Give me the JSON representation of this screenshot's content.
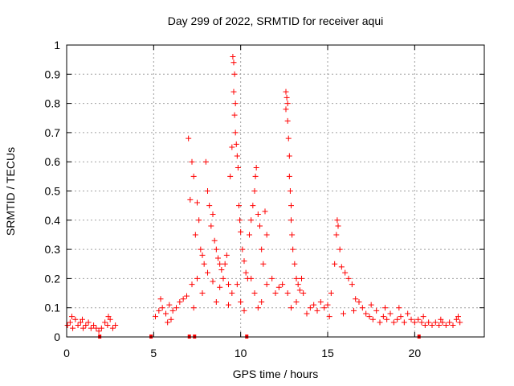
{
  "chart_data": {
    "type": "scatter",
    "title": "Day 299 of 2022, SRMTID for receiver aqui",
    "xlabel": "GPS time / hours",
    "ylabel": "SRMTID / TECUs",
    "xlim": [
      0,
      24
    ],
    "ylim": [
      0,
      1
    ],
    "x_ticks": [
      0,
      5,
      10,
      15,
      20
    ],
    "x_tick_labels": [
      "0",
      "5",
      "10",
      "15",
      "20"
    ],
    "y_ticks": [
      0,
      0.1,
      0.2,
      0.3,
      0.4,
      0.5,
      0.6,
      0.7,
      0.8,
      0.9,
      1
    ],
    "y_tick_labels": [
      "0",
      "0.1",
      "0.2",
      "0.3",
      "0.4",
      "0.5",
      "0.6",
      "0.7",
      "0.8",
      "0.9",
      "1"
    ],
    "grid": true,
    "marker": "+",
    "color": "#ff0000",
    "series": [
      {
        "name": "SRMTID",
        "points": [
          [
            0.05,
            0.04
          ],
          [
            0.2,
            0.05
          ],
          [
            0.35,
            0.03
          ],
          [
            0.5,
            0.06
          ],
          [
            0.65,
            0.04
          ],
          [
            0.8,
            0.05
          ],
          [
            0.95,
            0.03
          ],
          [
            1.1,
            0.04
          ],
          [
            1.25,
            0.05
          ],
          [
            1.4,
            0.03
          ],
          [
            1.55,
            0.04
          ],
          [
            1.7,
            0.03
          ],
          [
            1.85,
            0.02
          ],
          [
            2.0,
            0.03
          ],
          [
            2.2,
            0.05
          ],
          [
            2.35,
            0.04
          ],
          [
            2.5,
            0.06
          ],
          [
            2.65,
            0.03
          ],
          [
            2.8,
            0.04
          ],
          [
            0.3,
            0.07
          ],
          [
            0.9,
            0.06
          ],
          [
            2.4,
            0.07
          ],
          [
            5.1,
            0.07
          ],
          [
            5.3,
            0.09
          ],
          [
            5.5,
            0.1
          ],
          [
            5.7,
            0.08
          ],
          [
            5.9,
            0.11
          ],
          [
            6.1,
            0.09
          ],
          [
            6.3,
            0.1
          ],
          [
            6.5,
            0.12
          ],
          [
            6.7,
            0.13
          ],
          [
            6.9,
            0.14
          ],
          [
            5.4,
            0.13
          ],
          [
            6.0,
            0.06
          ],
          [
            5.8,
            0.05
          ],
          [
            7.0,
            0.68
          ],
          [
            7.2,
            0.6
          ],
          [
            7.3,
            0.55
          ],
          [
            7.1,
            0.47
          ],
          [
            7.5,
            0.46
          ],
          [
            7.6,
            0.4
          ],
          [
            7.4,
            0.35
          ],
          [
            7.7,
            0.3
          ],
          [
            7.8,
            0.28
          ],
          [
            7.9,
            0.25
          ],
          [
            8.0,
            0.6
          ],
          [
            8.1,
            0.5
          ],
          [
            8.2,
            0.45
          ],
          [
            8.3,
            0.38
          ],
          [
            8.4,
            0.42
          ],
          [
            8.5,
            0.33
          ],
          [
            8.6,
            0.3
          ],
          [
            8.7,
            0.27
          ],
          [
            8.8,
            0.25
          ],
          [
            8.9,
            0.23
          ],
          [
            7.2,
            0.18
          ],
          [
            7.5,
            0.2
          ],
          [
            7.8,
            0.15
          ],
          [
            8.1,
            0.22
          ],
          [
            8.4,
            0.19
          ],
          [
            8.6,
            0.12
          ],
          [
            8.8,
            0.17
          ],
          [
            7.3,
            0.1
          ],
          [
            9.0,
            0.2
          ],
          [
            9.1,
            0.25
          ],
          [
            9.2,
            0.28
          ],
          [
            9.3,
            0.18
          ],
          [
            9.4,
            0.55
          ],
          [
            9.5,
            0.65
          ],
          [
            9.55,
            0.96
          ],
          [
            9.6,
            0.94
          ],
          [
            9.65,
            0.9
          ],
          [
            9.6,
            0.84
          ],
          [
            9.7,
            0.8
          ],
          [
            9.65,
            0.76
          ],
          [
            9.7,
            0.7
          ],
          [
            9.75,
            0.66
          ],
          [
            9.8,
            0.62
          ],
          [
            9.85,
            0.58
          ],
          [
            9.9,
            0.45
          ],
          [
            9.95,
            0.4
          ],
          [
            10.0,
            0.36
          ],
          [
            10.1,
            0.3
          ],
          [
            10.2,
            0.26
          ],
          [
            10.3,
            0.22
          ],
          [
            10.4,
            0.2
          ],
          [
            9.5,
            0.15
          ],
          [
            9.8,
            0.18
          ],
          [
            10.0,
            0.12
          ],
          [
            10.2,
            0.09
          ],
          [
            9.3,
            0.11
          ],
          [
            10.5,
            0.35
          ],
          [
            10.6,
            0.4
          ],
          [
            10.7,
            0.45
          ],
          [
            10.8,
            0.5
          ],
          [
            10.85,
            0.55
          ],
          [
            10.9,
            0.58
          ],
          [
            11.0,
            0.42
          ],
          [
            11.1,
            0.38
          ],
          [
            11.2,
            0.3
          ],
          [
            11.3,
            0.25
          ],
          [
            11.4,
            0.43
          ],
          [
            11.5,
            0.35
          ],
          [
            10.6,
            0.2
          ],
          [
            10.8,
            0.15
          ],
          [
            11.0,
            0.1
          ],
          [
            11.2,
            0.12
          ],
          [
            11.5,
            0.18
          ],
          [
            11.8,
            0.2
          ],
          [
            12.0,
            0.15
          ],
          [
            12.2,
            0.17
          ],
          [
            12.4,
            0.18
          ],
          [
            12.6,
            0.84
          ],
          [
            12.65,
            0.82
          ],
          [
            12.7,
            0.8
          ],
          [
            12.6,
            0.78
          ],
          [
            12.7,
            0.74
          ],
          [
            12.75,
            0.68
          ],
          [
            12.8,
            0.62
          ],
          [
            12.8,
            0.55
          ],
          [
            12.85,
            0.5
          ],
          [
            12.9,
            0.45
          ],
          [
            12.9,
            0.4
          ],
          [
            12.95,
            0.35
          ],
          [
            13.0,
            0.3
          ],
          [
            13.1,
            0.25
          ],
          [
            13.2,
            0.2
          ],
          [
            13.3,
            0.18
          ],
          [
            13.4,
            0.16
          ],
          [
            13.5,
            0.2
          ],
          [
            13.6,
            0.15
          ],
          [
            12.7,
            0.15
          ],
          [
            12.9,
            0.1
          ],
          [
            13.2,
            0.12
          ],
          [
            13.8,
            0.08
          ],
          [
            14.0,
            0.1
          ],
          [
            14.2,
            0.11
          ],
          [
            14.4,
            0.09
          ],
          [
            14.6,
            0.12
          ],
          [
            14.8,
            0.1
          ],
          [
            15.0,
            0.11
          ],
          [
            15.2,
            0.15
          ],
          [
            15.4,
            0.25
          ],
          [
            15.5,
            0.35
          ],
          [
            15.55,
            0.4
          ],
          [
            15.6,
            0.38
          ],
          [
            15.7,
            0.3
          ],
          [
            15.8,
            0.24
          ],
          [
            16.0,
            0.22
          ],
          [
            16.2,
            0.2
          ],
          [
            16.4,
            0.18
          ],
          [
            16.6,
            0.13
          ],
          [
            16.8,
            0.12
          ],
          [
            17.0,
            0.1
          ],
          [
            15.1,
            0.07
          ],
          [
            15.9,
            0.08
          ],
          [
            16.5,
            0.09
          ],
          [
            17.2,
            0.08
          ],
          [
            17.4,
            0.07
          ],
          [
            17.6,
            0.06
          ],
          [
            17.8,
            0.09
          ],
          [
            18.0,
            0.05
          ],
          [
            18.2,
            0.07
          ],
          [
            18.4,
            0.06
          ],
          [
            18.6,
            0.08
          ],
          [
            18.8,
            0.05
          ],
          [
            19.0,
            0.06
          ],
          [
            19.2,
            0.07
          ],
          [
            19.4,
            0.05
          ],
          [
            19.6,
            0.08
          ],
          [
            19.8,
            0.06
          ],
          [
            20.0,
            0.05
          ],
          [
            17.5,
            0.11
          ],
          [
            18.3,
            0.1
          ],
          [
            19.1,
            0.1
          ],
          [
            20.2,
            0.06
          ],
          [
            20.4,
            0.05
          ],
          [
            20.6,
            0.04
          ],
          [
            20.8,
            0.05
          ],
          [
            21.0,
            0.04
          ],
          [
            21.2,
            0.05
          ],
          [
            21.4,
            0.04
          ],
          [
            21.6,
            0.05
          ],
          [
            21.8,
            0.04
          ],
          [
            22.0,
            0.05
          ],
          [
            22.2,
            0.04
          ],
          [
            22.4,
            0.06
          ],
          [
            22.6,
            0.05
          ],
          [
            20.5,
            0.07
          ],
          [
            21.5,
            0.06
          ],
          [
            22.5,
            0.07
          ]
        ],
        "baseline_points": [
          [
            1.9,
            0.0
          ],
          [
            4.85,
            0.0
          ],
          [
            7.05,
            0.0
          ],
          [
            7.35,
            0.0
          ],
          [
            10.35,
            0.0
          ],
          [
            20.25,
            0.0
          ]
        ]
      }
    ]
  }
}
